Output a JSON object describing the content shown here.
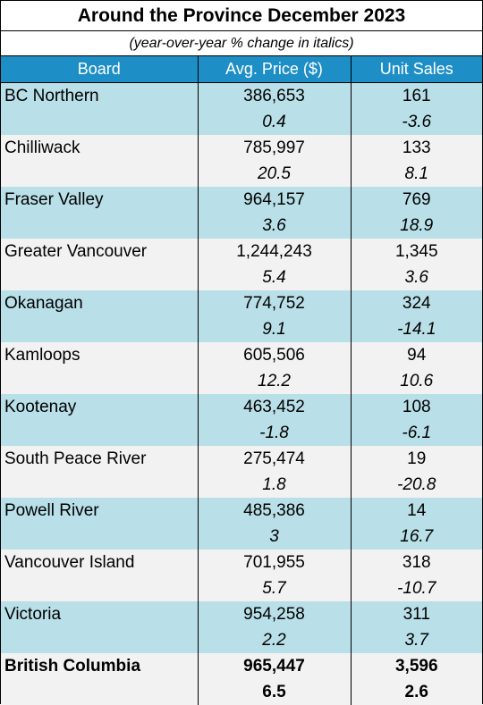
{
  "title": "Around the Province December 2023",
  "subtitle": "(year-over-year % change in italics)",
  "headers": [
    "Board",
    "Avg. Price ($)",
    "Unit Sales"
  ],
  "rows": [
    {
      "board": "BC Northern",
      "price": "386,653",
      "sales": "161",
      "price_change": "0.4",
      "sales_change": "-3.6"
    },
    {
      "board": "Chilliwack",
      "price": "785,997",
      "sales": "133",
      "price_change": "20.5",
      "sales_change": "8.1"
    },
    {
      "board": "Fraser Valley",
      "price": "964,157",
      "sales": "769",
      "price_change": "3.6",
      "sales_change": "18.9"
    },
    {
      "board": "Greater Vancouver",
      "price": "1,244,243",
      "sales": "1,345",
      "price_change": "5.4",
      "sales_change": "3.6"
    },
    {
      "board": "Okanagan",
      "price": "774,752",
      "sales": "324",
      "price_change": "9.1",
      "sales_change": "-14.1"
    },
    {
      "board": "Kamloops",
      "price": "605,506",
      "sales": "94",
      "price_change": "12.2",
      "sales_change": "10.6"
    },
    {
      "board": "Kootenay",
      "price": "463,452",
      "sales": "108",
      "price_change": "-1.8",
      "sales_change": "-6.1"
    },
    {
      "board": "South Peace River",
      "price": "275,474",
      "sales": "19",
      "price_change": "1.8",
      "sales_change": "-20.8"
    },
    {
      "board": "Powell River",
      "price": "485,386",
      "sales": "14",
      "price_change": "3",
      "sales_change": "16.7"
    },
    {
      "board": "Vancouver Island",
      "price": "701,955",
      "sales": "318",
      "price_change": "5.7",
      "sales_change": "-10.7"
    },
    {
      "board": "Victoria",
      "price": "954,258",
      "sales": "311",
      "price_change": "2.2",
      "sales_change": "3.7"
    },
    {
      "board": "British Columbia",
      "price": "965,447",
      "sales": "3,596",
      "price_change": "6.5",
      "sales_change": "2.6"
    }
  ],
  "colors": {
    "header_bg": "#1e8fc6",
    "row_blue": "#b9dfe8",
    "row_grey": "#f2f2f2"
  }
}
